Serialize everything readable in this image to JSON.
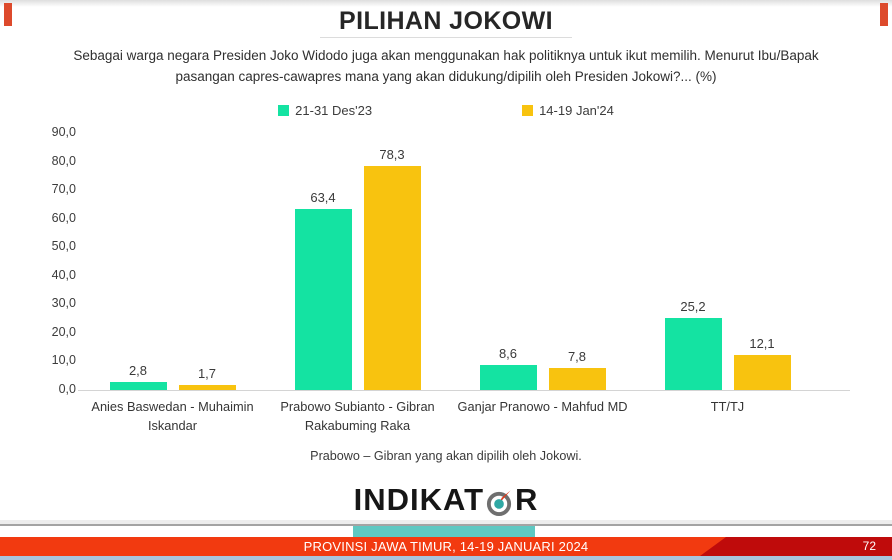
{
  "chart_data": {
    "type": "bar",
    "title": "PILIHAN JOKOWI",
    "subtitle": "Sebagai warga negara Presiden Joko Widodo juga akan menggunakan hak politiknya untuk ikut memilih.  Menurut Ibu/Bapak pasangan capres-cawapres mana yang akan didukung/dipilih oleh Presiden Jokowi?... (%)",
    "categories": [
      "Anies Baswedan - Muhaimin Iskandar",
      "Prabowo Subianto - Gibran Rakabuming Raka",
      "Ganjar Pranowo - Mahfud MD",
      "TT/TJ"
    ],
    "series": [
      {
        "name": "21-31 Des'23",
        "color": "#14E3A2",
        "values": [
          2.8,
          63.4,
          8.6,
          25.2
        ],
        "value_labels": [
          "2,8",
          "63,4",
          "8,6",
          "25,2"
        ]
      },
      {
        "name": "14-19 Jan'24",
        "color": "#F8C30F",
        "values": [
          1.7,
          78.3,
          7.8,
          12.1
        ],
        "value_labels": [
          "1,7",
          "78,3",
          "7,8",
          "12,1"
        ]
      }
    ],
    "xlabel": "",
    "ylabel": "",
    "ylim": [
      0,
      90
    ],
    "yticks": [
      0,
      10,
      20,
      30,
      40,
      50,
      60,
      70,
      80,
      90
    ],
    "ytick_labels": [
      "0,0",
      "10,0",
      "20,0",
      "30,0",
      "40,0",
      "50,0",
      "60,0",
      "70,0",
      "80,0",
      "90,0"
    ],
    "grid": false,
    "legend_position": "top",
    "footnote": "Prabowo – Gibran yang akan dipilih oleh Jokowi."
  },
  "logo": {
    "text_left": "INDIKAT",
    "text_right": "R",
    "compass_ring_color": "#6F6F6F",
    "compass_center_color": "#2FA8A4",
    "compass_needle_color": "#E23B1C"
  },
  "footer": {
    "banner_text": "PROVINSI JAWA TIMUR, 14-19 JANUARI 2024",
    "page_number": "72",
    "banner_color": "#F23A10",
    "banner_dark_color": "#BF0B0B",
    "ribbon_color": "#5EC8C2",
    "bottom_strip_color": "#A9C5DD"
  },
  "accents": {
    "corner_mark_color": "#DD4A2C"
  }
}
